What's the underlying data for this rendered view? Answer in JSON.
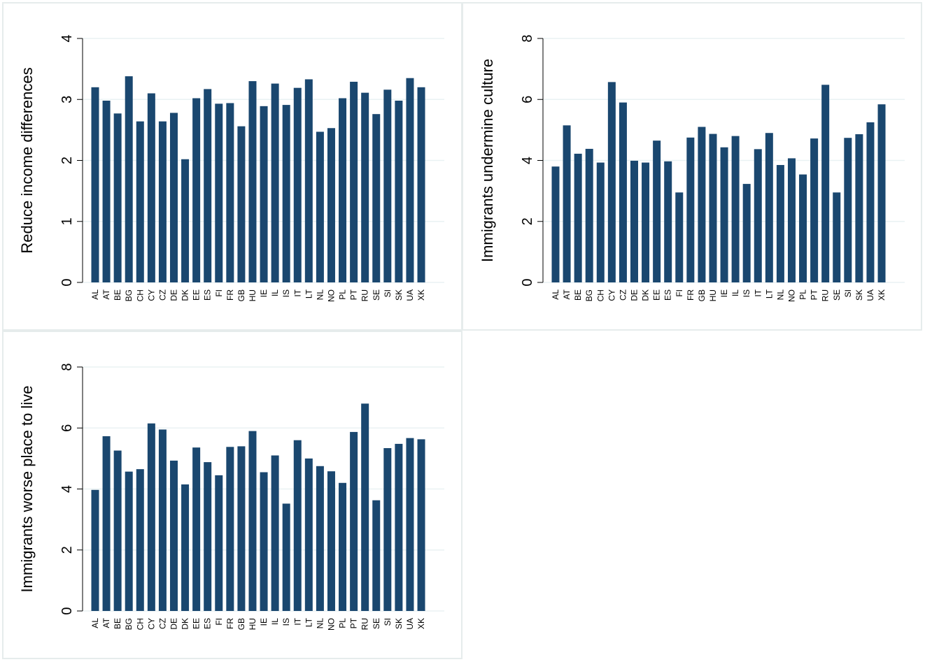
{
  "chart_data": [
    {
      "type": "bar",
      "y_label": "Reduce income differences",
      "categories": [
        "AL",
        "AT",
        "BE",
        "BG",
        "CH",
        "CY",
        "CZ",
        "DE",
        "DK",
        "EE",
        "ES",
        "FI",
        "FR",
        "GB",
        "HU",
        "IE",
        "IL",
        "IS",
        "IT",
        "LT",
        "NL",
        "NO",
        "PL",
        "PT",
        "RU",
        "SE",
        "SI",
        "SK",
        "UA",
        "XK"
      ],
      "values": [
        3.2,
        2.98,
        2.77,
        3.38,
        2.64,
        3.1,
        2.64,
        2.78,
        2.02,
        3.02,
        3.17,
        2.93,
        2.94,
        2.56,
        3.3,
        2.89,
        3.26,
        2.91,
        3.19,
        3.33,
        2.47,
        2.53,
        3.02,
        3.29,
        3.11,
        2.76,
        3.16,
        2.98,
        3.35,
        3.2
      ],
      "color": "#1a476f",
      "ylim": [
        0,
        4
      ],
      "yticks": [
        0,
        1,
        2,
        3,
        4
      ],
      "grid": true
    },
    {
      "type": "bar",
      "y_label": "Immigrants undermine culture",
      "categories": [
        "AL",
        "AT",
        "BE",
        "BG",
        "CH",
        "CY",
        "CZ",
        "DE",
        "DK",
        "EE",
        "ES",
        "FI",
        "FR",
        "GB",
        "HU",
        "IE",
        "IL",
        "IS",
        "IT",
        "LT",
        "NL",
        "NO",
        "PL",
        "PT",
        "RU",
        "SE",
        "SI",
        "SK",
        "UA",
        "XK"
      ],
      "values": [
        3.8,
        5.15,
        4.22,
        4.38,
        3.93,
        6.57,
        5.9,
        3.99,
        3.93,
        4.65,
        3.97,
        2.95,
        4.75,
        5.1,
        4.87,
        4.43,
        4.8,
        3.23,
        4.37,
        4.9,
        3.85,
        4.07,
        3.54,
        4.72,
        6.48,
        2.95,
        4.74,
        4.86,
        5.25,
        5.84
      ],
      "color": "#1a476f",
      "ylim": [
        0,
        8
      ],
      "yticks": [
        0,
        2,
        4,
        6,
        8
      ],
      "grid": true
    },
    {
      "type": "bar",
      "y_label": "Immigrants worse place to live",
      "categories": [
        "AL",
        "AT",
        "BE",
        "BG",
        "CH",
        "CY",
        "CZ",
        "DE",
        "DK",
        "EE",
        "ES",
        "FI",
        "FR",
        "GB",
        "HU",
        "IE",
        "IL",
        "IS",
        "IT",
        "LT",
        "NL",
        "NO",
        "PL",
        "PT",
        "RU",
        "SE",
        "SI",
        "SK",
        "UA",
        "XK"
      ],
      "values": [
        3.97,
        5.73,
        5.26,
        4.57,
        4.65,
        6.15,
        5.95,
        4.93,
        4.15,
        5.36,
        4.88,
        4.45,
        5.38,
        5.4,
        5.9,
        4.55,
        5.1,
        3.52,
        5.6,
        5.0,
        4.75,
        4.58,
        4.2,
        5.87,
        6.8,
        3.63,
        5.34,
        5.48,
        5.67,
        5.63
      ],
      "color": "#1a476f",
      "ylim": [
        0,
        8
      ],
      "yticks": [
        0,
        2,
        4,
        6,
        8
      ],
      "grid": true
    }
  ]
}
